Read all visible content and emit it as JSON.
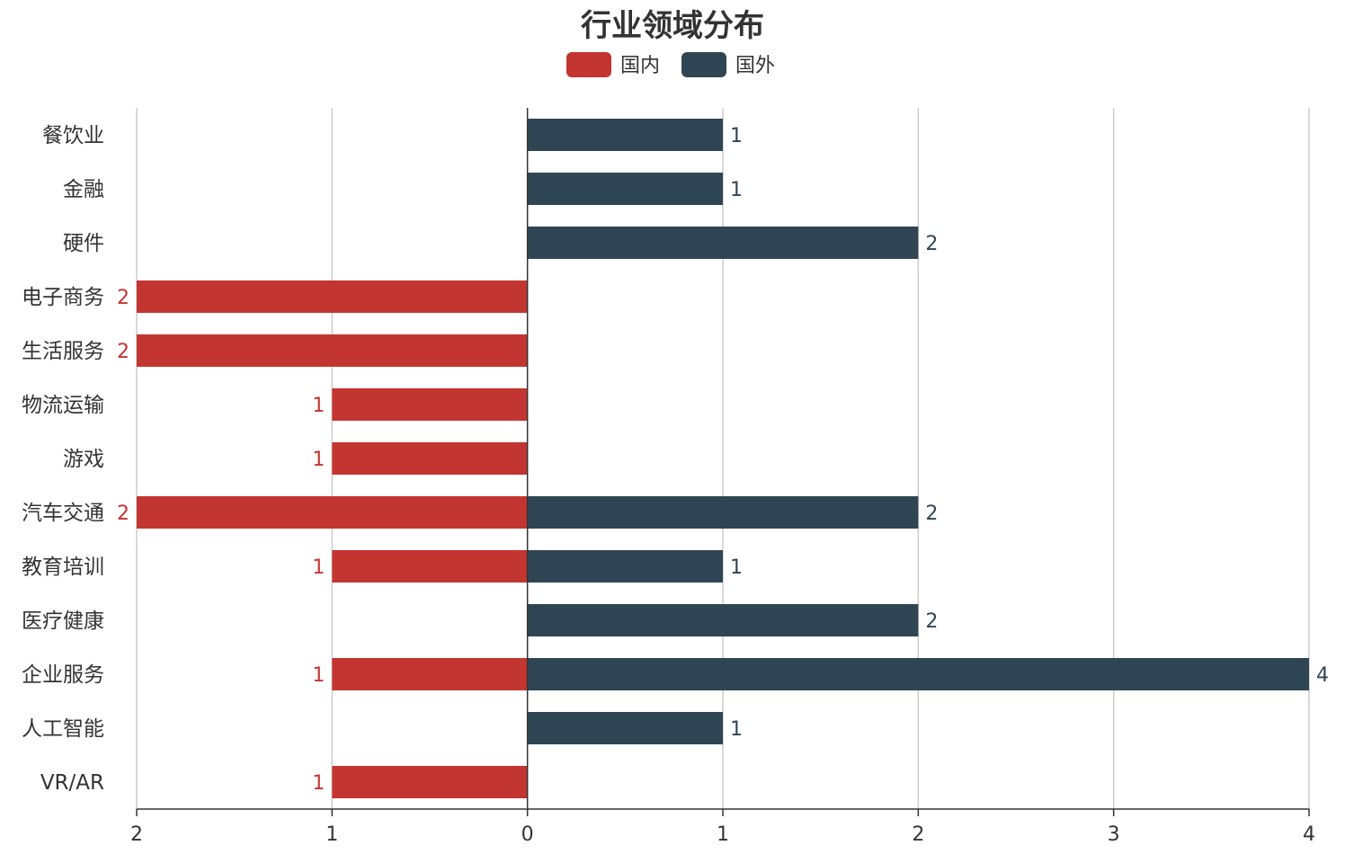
{
  "chart_data": {
    "type": "bar",
    "orientation": "horizontal",
    "title": "行业领域分布",
    "categories": [
      "餐饮业",
      "金融",
      "硬件",
      "电子商务",
      "生活服务",
      "物流运输",
      "游戏",
      "汽车交通",
      "教育培训",
      "医疗健康",
      "企业服务",
      "人工智能",
      "VR/AR"
    ],
    "series": [
      {
        "name": "国内",
        "color": "#c23531",
        "direction": "left",
        "values": [
          0,
          0,
          0,
          2,
          2,
          1,
          1,
          2,
          1,
          0,
          1,
          0,
          1
        ]
      },
      {
        "name": "国外",
        "color": "#2f4554",
        "direction": "right",
        "values": [
          1,
          1,
          2,
          0,
          0,
          0,
          0,
          2,
          1,
          2,
          4,
          1,
          0
        ]
      }
    ],
    "xlim": [
      -2,
      4
    ],
    "xticks": [
      -2,
      -1,
      0,
      1,
      2,
      3,
      4
    ],
    "xtick_labels": [
      "2",
      "1",
      "0",
      "1",
      "2",
      "3",
      "4"
    ],
    "xlabel": "",
    "ylabel": "",
    "grid": true,
    "legend_position": "top-center"
  }
}
